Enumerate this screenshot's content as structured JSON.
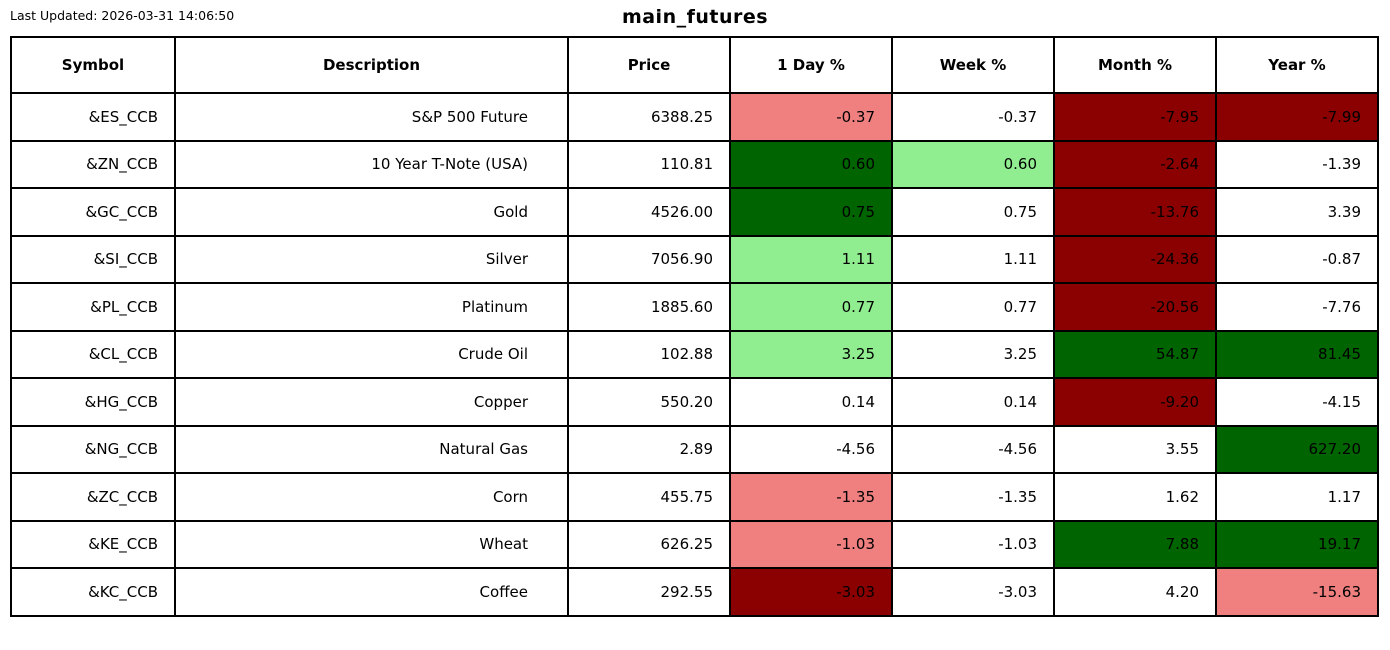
{
  "header": {
    "last_updated": "Last Updated: 2026-03-31 14:06:50",
    "title": "main_futures"
  },
  "colors": {
    "gain_strong": "#006400",
    "gain_mild": "#90EE90",
    "loss_strong": "#8B0000",
    "loss_mild": "#F08080",
    "neutral": "#FFFFFF",
    "border": "#000000",
    "text": "#000000"
  },
  "chart_data": {
    "type": "table",
    "title": "main_futures",
    "columns": [
      "Symbol",
      "Description",
      "Price",
      "1 Day %",
      "Week %",
      "Month %",
      "Year %"
    ],
    "rows": [
      {
        "cells": [
          "&ES_CCB",
          "S&P 500 Future",
          "6388.25",
          "-0.37",
          "-0.37",
          "-7.95",
          "-7.99"
        ],
        "bg": [
          null,
          null,
          null,
          "loss_mild",
          null,
          "loss_strong",
          "loss_strong"
        ]
      },
      {
        "cells": [
          "&ZN_CCB",
          "10 Year T-Note (USA)",
          "110.81",
          "0.60",
          "0.60",
          "-2.64",
          "-1.39"
        ],
        "bg": [
          null,
          null,
          null,
          "gain_strong",
          "gain_mild",
          "loss_strong",
          null
        ]
      },
      {
        "cells": [
          "&GC_CCB",
          "Gold",
          "4526.00",
          "0.75",
          "0.75",
          "-13.76",
          "3.39"
        ],
        "bg": [
          null,
          null,
          null,
          "gain_strong",
          null,
          "loss_strong",
          null
        ]
      },
      {
        "cells": [
          "&SI_CCB",
          "Silver",
          "7056.90",
          "1.11",
          "1.11",
          "-24.36",
          "-0.87"
        ],
        "bg": [
          null,
          null,
          null,
          "gain_mild",
          null,
          "loss_strong",
          null
        ]
      },
      {
        "cells": [
          "&PL_CCB",
          "Platinum",
          "1885.60",
          "0.77",
          "0.77",
          "-20.56",
          "-7.76"
        ],
        "bg": [
          null,
          null,
          null,
          "gain_mild",
          null,
          "loss_strong",
          null
        ]
      },
      {
        "cells": [
          "&CL_CCB",
          "Crude Oil",
          "102.88",
          "3.25",
          "3.25",
          "54.87",
          "81.45"
        ],
        "bg": [
          null,
          null,
          null,
          "gain_mild",
          null,
          "gain_strong",
          "gain_strong"
        ]
      },
      {
        "cells": [
          "&HG_CCB",
          "Copper",
          "550.20",
          "0.14",
          "0.14",
          "-9.20",
          "-4.15"
        ],
        "bg": [
          null,
          null,
          null,
          null,
          null,
          "loss_strong",
          null
        ]
      },
      {
        "cells": [
          "&NG_CCB",
          "Natural Gas",
          "2.89",
          "-4.56",
          "-4.56",
          "3.55",
          "627.20"
        ],
        "bg": [
          null,
          null,
          null,
          null,
          null,
          null,
          "gain_strong"
        ]
      },
      {
        "cells": [
          "&ZC_CCB",
          "Corn",
          "455.75",
          "-1.35",
          "-1.35",
          "1.62",
          "1.17"
        ],
        "bg": [
          null,
          null,
          null,
          "loss_mild",
          null,
          null,
          null
        ]
      },
      {
        "cells": [
          "&KE_CCB",
          "Wheat",
          "626.25",
          "-1.03",
          "-1.03",
          "7.88",
          "19.17"
        ],
        "bg": [
          null,
          null,
          null,
          "loss_mild",
          null,
          "gain_strong",
          "gain_strong"
        ]
      },
      {
        "cells": [
          "&KC_CCB",
          "Coffee",
          "292.55",
          "-3.03",
          "-3.03",
          "4.20",
          "-15.63"
        ],
        "bg": [
          null,
          null,
          null,
          "loss_strong",
          null,
          null,
          "loss_mild"
        ]
      }
    ]
  }
}
